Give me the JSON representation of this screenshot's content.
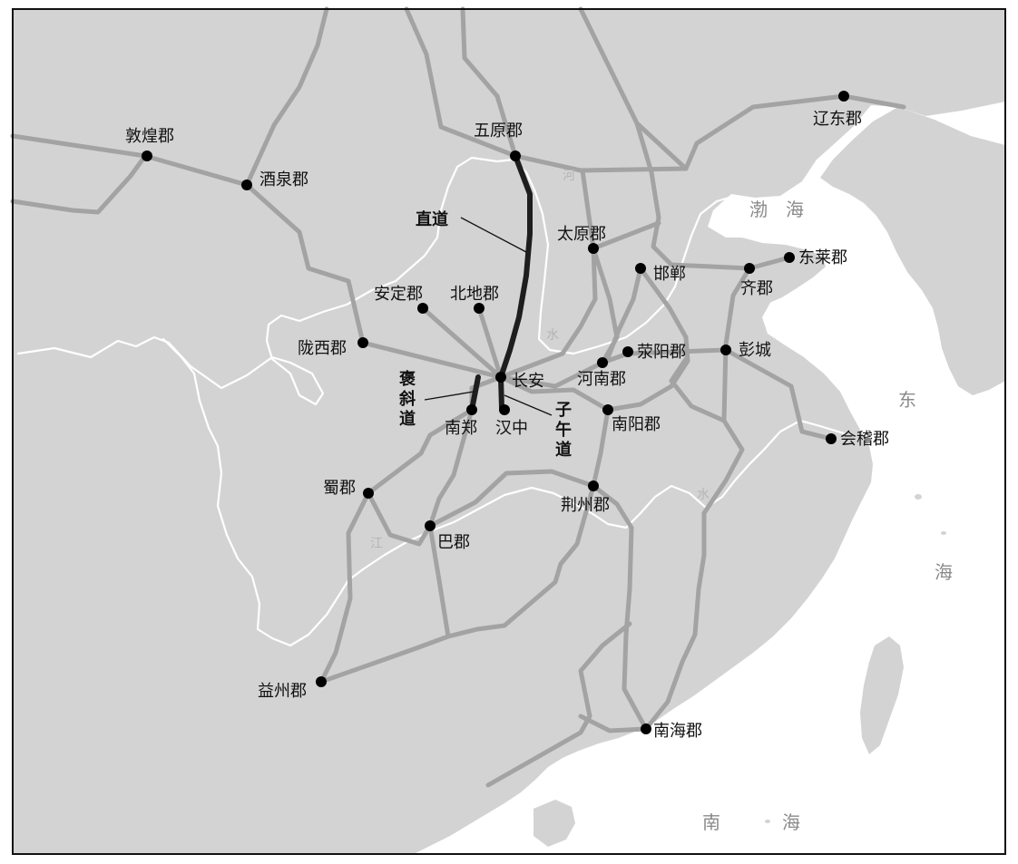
{
  "colors": {
    "land": "#d3d3d3",
    "sea": "#ffffff",
    "frame": "#111111",
    "road": "#a3a3a3",
    "main_road": "#1e1e1e",
    "river": "#ffffff",
    "city_dot": "#000000",
    "sea_text": "#8a8a8a",
    "river_text": "#b5b5b5"
  },
  "cities": [
    {
      "id": "dunhuang",
      "label": "敦煌郡"
    },
    {
      "id": "jiuquan",
      "label": "酒泉郡"
    },
    {
      "id": "wuyuan",
      "label": "五原郡"
    },
    {
      "id": "liaodong",
      "label": "辽东郡"
    },
    {
      "id": "taiyuan",
      "label": "太原郡"
    },
    {
      "id": "handan",
      "label": "邯郸"
    },
    {
      "id": "qi",
      "label": "齐郡"
    },
    {
      "id": "donglai",
      "label": "东莱郡"
    },
    {
      "id": "anding",
      "label": "安定郡"
    },
    {
      "id": "beidi",
      "label": "北地郡"
    },
    {
      "id": "longxi",
      "label": "陇西郡"
    },
    {
      "id": "changan",
      "label": "长安"
    },
    {
      "id": "xingyang",
      "label": "荥阳郡"
    },
    {
      "id": "henan",
      "label": "河南郡"
    },
    {
      "id": "pengcheng",
      "label": "彭城"
    },
    {
      "id": "nanzheng",
      "label": "南郑"
    },
    {
      "id": "hanzhong",
      "label": "汉中"
    },
    {
      "id": "nanyang",
      "label": "南阳郡"
    },
    {
      "id": "kuaiji",
      "label": "会稽郡"
    },
    {
      "id": "shu",
      "label": "蜀郡"
    },
    {
      "id": "jingzhou",
      "label": "荆州郡"
    },
    {
      "id": "ba",
      "label": "巴郡"
    },
    {
      "id": "yizhou",
      "label": "益州郡"
    },
    {
      "id": "nanhai",
      "label": "南海郡"
    }
  ],
  "routes": {
    "zhidao": "直道",
    "baoxie": [
      "褒",
      "斜",
      "道"
    ],
    "ziwu": [
      "子",
      "午",
      "道"
    ]
  },
  "seas": {
    "bohai": [
      "渤",
      "海"
    ],
    "donghai": [
      "东",
      "海"
    ],
    "nanhai": [
      "南",
      "海"
    ]
  },
  "rivers": {
    "he": [
      "河",
      "水"
    ],
    "jiang": [
      "江",
      "水"
    ]
  }
}
